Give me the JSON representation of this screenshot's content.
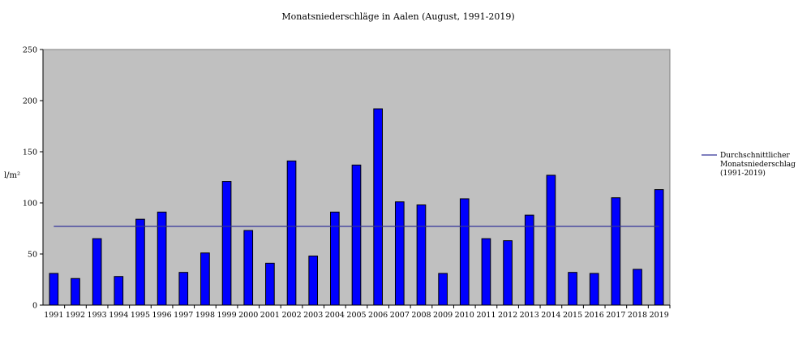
{
  "chart_data": {
    "type": "bar",
    "title": "Monatsniederschläge in Aalen (August, 1991-2019)",
    "ylabel": "l/m²",
    "xlabel": "",
    "ylim": [
      0,
      250
    ],
    "yticks": [
      0,
      50,
      100,
      150,
      200,
      250
    ],
    "grid": false,
    "legend_position": "right",
    "categories": [
      "1991",
      "1992",
      "1993",
      "1994",
      "1995",
      "1996",
      "1997",
      "1998",
      "1999",
      "2000",
      "2001",
      "2002",
      "2003",
      "2004",
      "2005",
      "2006",
      "2007",
      "2008",
      "2009",
      "2010",
      "2011",
      "2012",
      "2013",
      "2014",
      "2015",
      "2016",
      "2017",
      "2018",
      "2019"
    ],
    "values": [
      31,
      26,
      65,
      28,
      84,
      91,
      32,
      51,
      121,
      73,
      41,
      141,
      48,
      91,
      137,
      192,
      101,
      98,
      31,
      104,
      65,
      63,
      88,
      127,
      32,
      31,
      105,
      35,
      113
    ],
    "average_line": {
      "name": "Durchschnittlicher Monatsniederschlag (1991-2019)",
      "name_lines": [
        "Durchschnittlicher",
        "Monatsniederschlag",
        "(1991-2019)"
      ],
      "value": 77
    },
    "colors": {
      "bar_fill": "#0000ff",
      "bar_stroke": "#000000",
      "plot_background": "#c0c0c0",
      "average_line": "#333399"
    }
  }
}
